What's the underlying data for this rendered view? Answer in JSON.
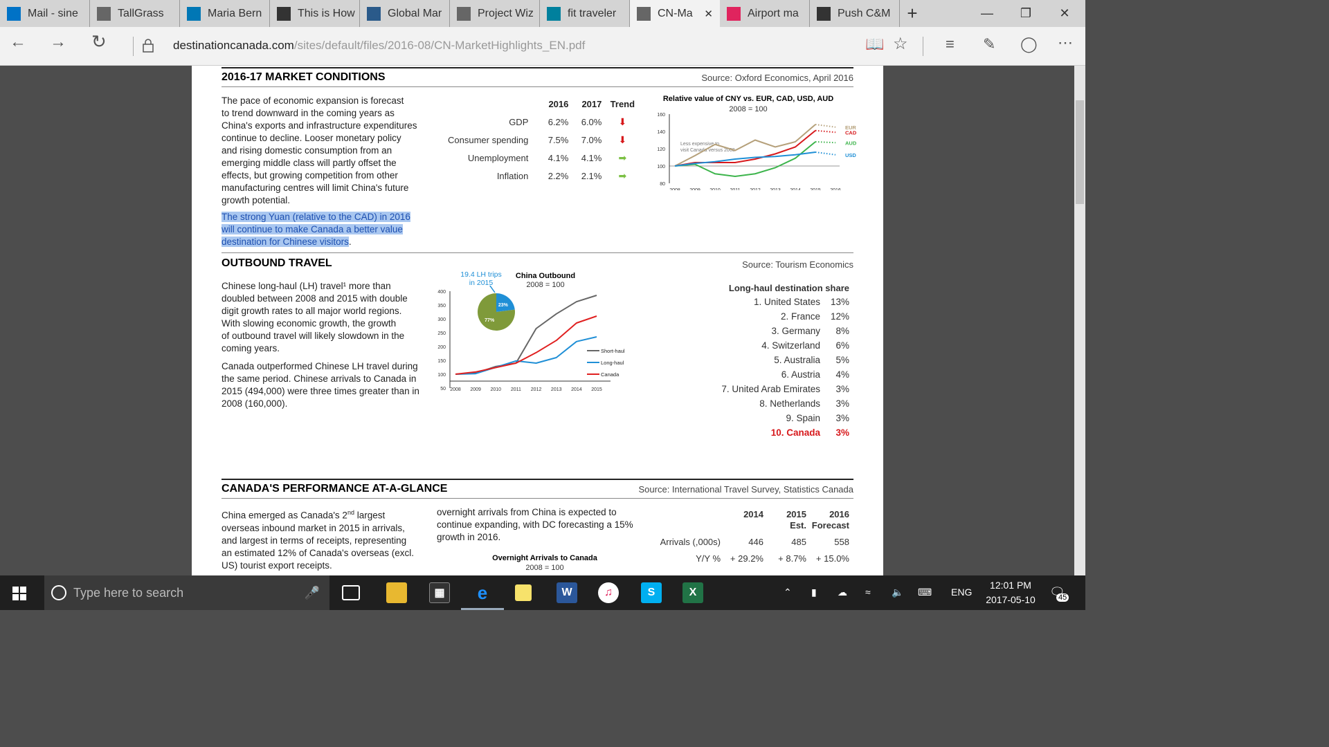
{
  "tabs": [
    {
      "label": "Mail - sine",
      "icon": "outlook-icon",
      "color": "#0072c6"
    },
    {
      "label": "TallGrass",
      "icon": "page-icon",
      "color": "#666666"
    },
    {
      "label": "Maria Bern",
      "icon": "linkedin-icon",
      "color": "#0077b5"
    },
    {
      "label": "This is How",
      "icon": "e-icon",
      "color": "#333333"
    },
    {
      "label": "Global Mar",
      "icon": "map-icon",
      "color": "#2a5a8a"
    },
    {
      "label": "Project Wiz",
      "icon": "page-icon",
      "color": "#666666"
    },
    {
      "label": "fit traveler",
      "icon": "bing-icon",
      "color": "#00809d"
    },
    {
      "label": "CN-Ma",
      "icon": "page-icon",
      "color": "#666666",
      "active": true
    },
    {
      "label": "Airport ma",
      "icon": "airport-icon",
      "color": "#e0245e"
    },
    {
      "label": "Push C&M",
      "icon": "push-icon",
      "color": "#333333"
    }
  ],
  "url": {
    "domain": "destinationcanada.com",
    "path": "/sites/default/files/2016-08/CN-MarketHighlights_EN.pdf"
  },
  "market": {
    "title": "2016-17 MARKET CONDITIONS",
    "source": "Source: Oxford Economics, April 2016",
    "para": [
      "The pace of economic expansion is forecast",
      "to trend downward in the coming years as",
      "China's exports and infrastructure expenditures",
      "continue to decline. Looser monetary policy",
      "and rising domestic consumption from an",
      "emerging middle class will partly offset the",
      "effects, but growing competition from other",
      "manufacturing centres will limit China's future",
      "growth potential."
    ],
    "highlight": [
      "The strong Yuan (relative to the CAD) in 2016",
      "will continue to make Canada a better value",
      "destination for Chinese visitors"
    ],
    "table_headers": [
      "2016",
      "2017",
      "Trend"
    ],
    "rows": [
      {
        "label": "GDP",
        "y2016": "6.2%",
        "y2017": "6.0%",
        "trend": "down"
      },
      {
        "label": "Consumer spending",
        "y2016": "7.5%",
        "y2017": "7.0%",
        "trend": "down"
      },
      {
        "label": "Unemployment",
        "y2016": "4.1%",
        "y2017": "4.1%",
        "trend": "flat"
      },
      {
        "label": "Inflation",
        "y2016": "2.2%",
        "y2017": "2.1%",
        "trend": "flat"
      }
    ],
    "trend_colors": {
      "down": "#d7191c",
      "flat": "#7bc043"
    }
  },
  "cny_chart": {
    "title": "Relative value of CNY vs. EUR, CAD, USD, AUD",
    "subtitle": "2008 = 100",
    "note": "Less expensive to visit Canada versus 2008",
    "x": [
      "2008",
      "2009",
      "2010",
      "2011",
      "2012",
      "2013",
      "2014",
      "2015",
      "2016"
    ],
    "y_ticks": [
      "160",
      "140",
      "120",
      "100",
      "80"
    ],
    "ylim": [
      80,
      160
    ],
    "series": [
      {
        "name": "EUR",
        "color": "#b5a07a",
        "values": [
          100,
          112,
          125,
          118,
          130,
          122,
          128,
          148,
          145
        ]
      },
      {
        "name": "CAD",
        "color": "#d7191c",
        "values": [
          100,
          104,
          104,
          104,
          108,
          114,
          122,
          141,
          139
        ]
      },
      {
        "name": "AUD",
        "color": "#3cb44b",
        "values": [
          100,
          102,
          91,
          88,
          91,
          98,
          109,
          128,
          127
        ]
      },
      {
        "name": "USD",
        "color": "#1f8fd6",
        "values": [
          100,
          103,
          105,
          108,
          110,
          111,
          113,
          116,
          113
        ]
      }
    ]
  },
  "outbound": {
    "title": "OUTBOUND TRAVEL",
    "source": "Source: Tourism Economics",
    "para1": [
      "Chinese long-haul (LH) travel¹ more than",
      "doubled between 2008 and 2015 with double",
      "digit growth rates to all major world regions.",
      "With slowing economic growth, the growth",
      "of outbound travel will likely slowdown in the",
      "coming years."
    ],
    "para2": [
      "Canada outperformed Chinese LH travel during",
      "the same period. Chinese arrivals to Canada in",
      "2015 (494,000) were three times greater than in",
      "2008 (160,000)."
    ],
    "pie_label": [
      "19.4 LH trips",
      "in 2015"
    ],
    "pie_values": [
      {
        "label": "23%",
        "value": 23,
        "color": "#1f8fd6"
      },
      {
        "label": "77%",
        "value": 77,
        "color": "#7f9a3a"
      }
    ],
    "list_title": "Long-haul destination share",
    "list": [
      {
        "rank": "1. United States",
        "share": "13%"
      },
      {
        "rank": "2. France",
        "share": "12%"
      },
      {
        "rank": "3. Germany",
        "share": "8%"
      },
      {
        "rank": "4. Switzerland",
        "share": "6%"
      },
      {
        "rank": "5. Australia",
        "share": "5%"
      },
      {
        "rank": "6. Austria",
        "share": "4%"
      },
      {
        "rank": "7. United Arab Emirates",
        "share": "3%"
      },
      {
        "rank": "8. Netherlands",
        "share": "3%"
      },
      {
        "rank": "9. Spain",
        "share": "3%"
      },
      {
        "rank": "10. Canada",
        "share": "3%",
        "highlight": true
      }
    ],
    "highlight_color": "#d7191c"
  },
  "chart_data": {
    "type": "line",
    "title": "China Outbound",
    "subtitle": "2008 = 100",
    "x": [
      "2008",
      "2009",
      "2010",
      "2011",
      "2012",
      "2013",
      "2014",
      "2015"
    ],
    "ylim": [
      50,
      400
    ],
    "y_ticks": [
      "400",
      "350",
      "300",
      "250",
      "200",
      "150",
      "100",
      "50"
    ],
    "series": [
      {
        "name": "Short-haul",
        "color": "#666666",
        "values": [
          100,
          104,
          128,
          140,
          265,
          318,
          362,
          385
        ]
      },
      {
        "name": "Long-haul",
        "color": "#1f8fd6",
        "values": [
          100,
          102,
          125,
          148,
          140,
          160,
          218,
          235
        ]
      },
      {
        "name": "Canada",
        "color": "#e02020",
        "values": [
          100,
          108,
          124,
          140,
          178,
          222,
          285,
          310
        ]
      }
    ]
  },
  "perf": {
    "title": "CANADA'S PERFORMANCE AT-A-GLANCE",
    "source": "Source: International Travel Survey, Statistics Canada",
    "para1_start": "China emerged as Canada's 2",
    "para1_sup": "nd",
    "para1_end": " largest",
    "para1": [
      "overseas inbound market in 2015 in arrivals,",
      "and largest in terms of receipts, representing",
      "an estimated 12% of Canada's overseas (excl.",
      "US) tourist export receipts."
    ],
    "para2": [
      "overnight arrivals from China is expected to",
      "continue expanding, with DC forecasting a 15%",
      "growth in 2016."
    ],
    "chart_title": "Overnight Arrivals to Canada",
    "chart_subtitle": "2008 = 100",
    "headers": [
      "2014",
      "2015",
      "2016"
    ],
    "headers2": [
      "",
      "Est.",
      "Forecast"
    ],
    "rows": [
      {
        "label": "Arrivals (,000s)",
        "v": [
          "446",
          "485",
          "558"
        ]
      },
      {
        "label": "Y/Y %",
        "v": [
          "+ 29.2%",
          "+ 8.7%",
          "+ 15.0%"
        ]
      }
    ]
  },
  "taskbar": {
    "search": "Type here to search",
    "lang": "ENG",
    "time": "12:01 PM",
    "date": "2017-05-10",
    "notif": "45"
  }
}
